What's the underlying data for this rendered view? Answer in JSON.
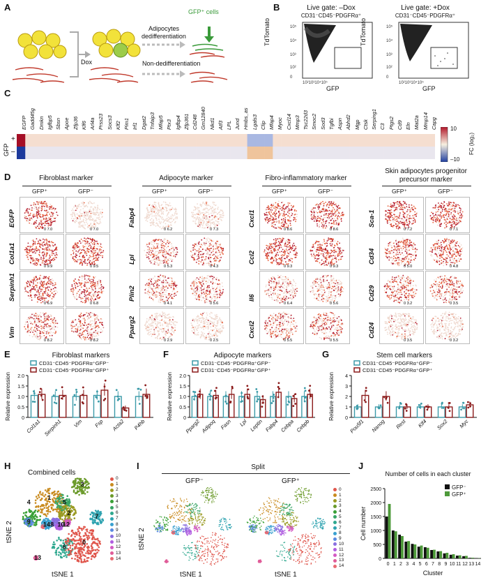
{
  "panelA": {
    "label": "A",
    "dox": "Dox",
    "dediff": "Adipocytes\ndedifferentiation",
    "nondediff": "Non-dedifferentiation",
    "gfp_cells": "GFP⁺ cells"
  },
  "panelB": {
    "label": "B",
    "left_title": "Live gate: –Dox",
    "left_sub": "CD31⁻CD45⁻PDGFRα⁺",
    "right_title": "Live gate: +Dox",
    "right_sub": "CD31⁻CD45⁻PDGFRα⁺",
    "ylabel": "TdTomato",
    "xlabel": "GFP"
  },
  "panelC": {
    "label": "C",
    "genes": [
      "EGFP",
      "Gadd45g",
      "Dmkn",
      "Igfbp5",
      "Sbsn",
      "Apoe",
      "Zfp36",
      "Klf6",
      "Arl4a",
      "Prss23",
      "Socs3",
      "Klf2",
      "Pim1",
      "Irf1",
      "Dgat2",
      "Tnfaip3",
      "Mfap5",
      "Ptx3",
      "Igfbp4",
      "Zfp361",
      "Cd248",
      "Gm12840",
      "Nkd1",
      "Atf3",
      "LPL",
      "Jund",
      "Hmbs_as",
      "Lgals3",
      "Clip",
      "Mfap4",
      "Myoc",
      "Cxcl14",
      "Mmp3",
      "Tsc22d3",
      "Smoc2",
      "Sod3",
      "Tgfbi",
      "Aspn",
      "Abhd2",
      "Mgp",
      "Ctsk",
      "Serping1",
      "C3",
      "Ptgs2",
      "Cd9",
      "Eln",
      "Mat2a",
      "Mmp14",
      "Capg"
    ],
    "rowlabel": "GFP",
    "row_plus": "+",
    "row_minus": "–",
    "cbar_max": "10",
    "cbar_min": "–10",
    "cbar_label": "FC (log₂)"
  },
  "panelD": {
    "label": "D",
    "gfp_pos": "GFP⁺",
    "gfp_neg": "GFP⁻",
    "groups": [
      {
        "title": "Fibroblast marker",
        "genes": [
          "EGFP",
          "Col1a1",
          "Serpinh1",
          "Vim"
        ],
        "pos_max": [
          "7.0",
          "9.9",
          "6.9",
          "8.2"
        ],
        "neg_max": [
          "7.0",
          "9.5",
          "6.8",
          "8.2"
        ]
      },
      {
        "title": "Adipocyte marker",
        "genes": [
          "Fabp4",
          "Lpl",
          "Plin2",
          "Pparg2"
        ],
        "pos_max": [
          "6.2",
          "5.3",
          "4.1",
          "2.9"
        ],
        "neg_max": [
          "7.3",
          "4.3",
          "5.6",
          "2.5"
        ]
      },
      {
        "title": "Fibro-inflammatory marker",
        "genes": [
          "Cxcl1",
          "Ccl2",
          "Il6",
          "Cxcl2"
        ],
        "pos_max": [
          "8.6",
          "9.3",
          "6.4",
          "5.5"
        ],
        "neg_max": [
          "8.6",
          "9.3",
          "5.6",
          "5.5"
        ]
      },
      {
        "title": "Skin adipocytes progenitor\nprecursor marker",
        "genes": [
          "Sca-1",
          "Cd34",
          "Cd29",
          "Cd24"
        ],
        "pos_max": [
          "7.2",
          "5.0",
          "3.2",
          "3.5"
        ],
        "neg_max": [
          "7.1",
          "4.8",
          "3.5",
          "3.2"
        ]
      }
    ]
  },
  "panelE": {
    "label": "E",
    "title": "Fibroblast markers",
    "legend_neg": "CD31⁻CD45⁻PDGFRα⁺GFP⁻",
    "legend_pos": "CD31⁻CD45⁻PDGFRα⁺GFP⁺",
    "ylabel": "Relative expression",
    "yticks": [
      "0",
      "0.5",
      "1.0",
      "1.5",
      "2.0"
    ],
    "chart_data": {
      "type": "bar",
      "categories": [
        "Col1a1",
        "Serpinh1",
        "Vim",
        "Fsp",
        "Acta2",
        "P4hb"
      ],
      "series": [
        {
          "name": "CD31⁻CD45⁻PDGFRα⁺GFP⁻",
          "values": [
            1.05,
            1.0,
            1.0,
            1.05,
            1.0,
            1.0
          ]
        },
        {
          "name": "CD31⁻CD45⁻PDGFRα⁺GFP⁺",
          "values": [
            1.1,
            1.05,
            1.05,
            1.3,
            0.45,
            1.1
          ]
        }
      ],
      "ylim": [
        0,
        2.0
      ]
    }
  },
  "panelF": {
    "label": "F",
    "title": "Adipocyte markers",
    "legend_neg": "CD31⁻CD45⁻PDGFRα⁺GFP⁻",
    "legend_pos": "CD31⁻CD45⁻PDGFRα⁺GFP⁺",
    "ylabel": "Relative expression",
    "yticks": [
      "0",
      "0.5",
      "1.0",
      "1.5",
      "2.0"
    ],
    "chart_data": {
      "type": "bar",
      "categories": [
        "Pparg2",
        "Adipoq",
        "Fasn",
        "Lpl",
        "Leptin",
        "Fabp4",
        "Cebpa",
        "Cebpb"
      ],
      "series": [
        {
          "name": "CD31⁻CD45⁻PDGFRα⁺GFP⁻",
          "values": [
            1.0,
            1.0,
            1.0,
            1.0,
            1.0,
            1.0,
            1.0,
            1.0
          ]
        },
        {
          "name": "CD31⁻CD45⁻PDGFRα⁺GFP⁺",
          "values": [
            1.1,
            1.05,
            1.1,
            1.1,
            0.85,
            1.2,
            0.9,
            1.1
          ]
        }
      ],
      "ylim": [
        0,
        2.0
      ]
    }
  },
  "panelG": {
    "label": "G",
    "title": "Stem cell markers",
    "legend_neg": "CD31⁻CD45⁻PDGFRα⁺GFP⁻",
    "legend_pos": "CD31⁻CD45⁻PDGFRα⁺GFP⁺",
    "ylabel": "Relative expression",
    "yticks": [
      "0",
      "1",
      "2",
      "3",
      "4"
    ],
    "chart_data": {
      "type": "bar",
      "categories": [
        "Pou5f1",
        "Nanog",
        "Rest",
        "Klf4",
        "Sox2",
        "Myc"
      ],
      "series": [
        {
          "name": "CD31⁻CD45⁻PDGFRα⁺GFP⁻",
          "values": [
            1.0,
            1.0,
            1.0,
            1.0,
            1.0,
            1.0
          ]
        },
        {
          "name": "CD31⁻CD45⁻PDGFRα⁺GFP⁺",
          "values": [
            2.1,
            2.0,
            1.0,
            1.0,
            1.0,
            1.2
          ]
        }
      ],
      "ylim": [
        0,
        4
      ]
    }
  },
  "panelH": {
    "label": "H",
    "title": "Combined cells",
    "xlabel": "tSNE 1",
    "ylabel": "tSNE 2",
    "clusters": [
      "0",
      "1",
      "2",
      "3",
      "4",
      "5",
      "6",
      "7",
      "8",
      "9",
      "10",
      "11",
      "12",
      "13",
      "14"
    ],
    "colors": [
      "#e0564c",
      "#c98b1f",
      "#9a9a22",
      "#6b9a2a",
      "#3aa036",
      "#38a565",
      "#2fa88f",
      "#2fa3b0",
      "#3aa0d0",
      "#5a8ae0",
      "#8a6fe0",
      "#b05de0",
      "#d35bc4",
      "#e05c98",
      "#e86a73"
    ]
  },
  "panelI": {
    "label": "I",
    "title": "Split",
    "left": "GFP⁻",
    "right": "GFP⁺",
    "xlabel": "tSNE 1",
    "ylabel": "tSNE 2"
  },
  "panelJ": {
    "label": "J",
    "title": "Number of cells in each cluster",
    "ylabel": "Cell number",
    "xlabel": "Cluster",
    "yticks": [
      "0",
      "500",
      "1000",
      "1500",
      "2000",
      "2500"
    ],
    "chart_data": {
      "type": "bar",
      "categories": [
        "0",
        "1",
        "2",
        "3",
        "4",
        "5",
        "6",
        "7",
        "8",
        "9",
        "10",
        "11",
        "12",
        "13",
        "14"
      ],
      "series": [
        {
          "name": "GFP⁻",
          "values": [
            1500,
            1000,
            850,
            600,
            520,
            420,
            400,
            300,
            250,
            180,
            130,
            100,
            80,
            20,
            10
          ]
        },
        {
          "name": "GFP⁺",
          "values": [
            1950,
            970,
            800,
            620,
            500,
            460,
            380,
            310,
            260,
            200,
            150,
            110,
            90,
            25,
            8
          ]
        }
      ],
      "ylim": [
        0,
        2500
      ]
    },
    "series_colors": [
      "#111111",
      "#4e9a3a"
    ]
  }
}
